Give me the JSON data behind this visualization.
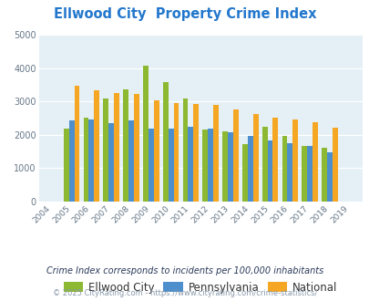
{
  "title": "Ellwood City  Property Crime Index",
  "years": [
    2004,
    2005,
    2006,
    2007,
    2008,
    2009,
    2010,
    2011,
    2012,
    2013,
    2014,
    2015,
    2016,
    2017,
    2018,
    2019
  ],
  "ellwood_city": [
    null,
    2175,
    2520,
    3075,
    3370,
    4075,
    3570,
    3090,
    2160,
    2110,
    1720,
    2230,
    1980,
    1660,
    1610,
    null
  ],
  "pennsylvania": [
    null,
    2420,
    2460,
    2350,
    2420,
    2200,
    2200,
    2230,
    2175,
    2080,
    1960,
    1820,
    1740,
    1670,
    1490,
    null
  ],
  "national": [
    null,
    3460,
    3340,
    3260,
    3230,
    3040,
    2960,
    2930,
    2890,
    2750,
    2620,
    2510,
    2470,
    2380,
    2210,
    null
  ],
  "ellwood_color": "#8db832",
  "pennsylvania_color": "#4d8fcc",
  "national_color": "#f5a623",
  "bg_color": "#e4f0f6",
  "ylim": [
    0,
    5000
  ],
  "yticks": [
    0,
    1000,
    2000,
    3000,
    4000,
    5000
  ],
  "subtitle": "Crime Index corresponds to incidents per 100,000 inhabitants",
  "footer": "© 2025 CityRating.com - https://www.cityrating.com/crime-statistics/",
  "legend_labels": [
    "Ellwood City",
    "Pennsylvania",
    "National"
  ],
  "title_color": "#2277cc",
  "subtitle_color": "#2a3a5a",
  "footer_color": "#8899aa"
}
